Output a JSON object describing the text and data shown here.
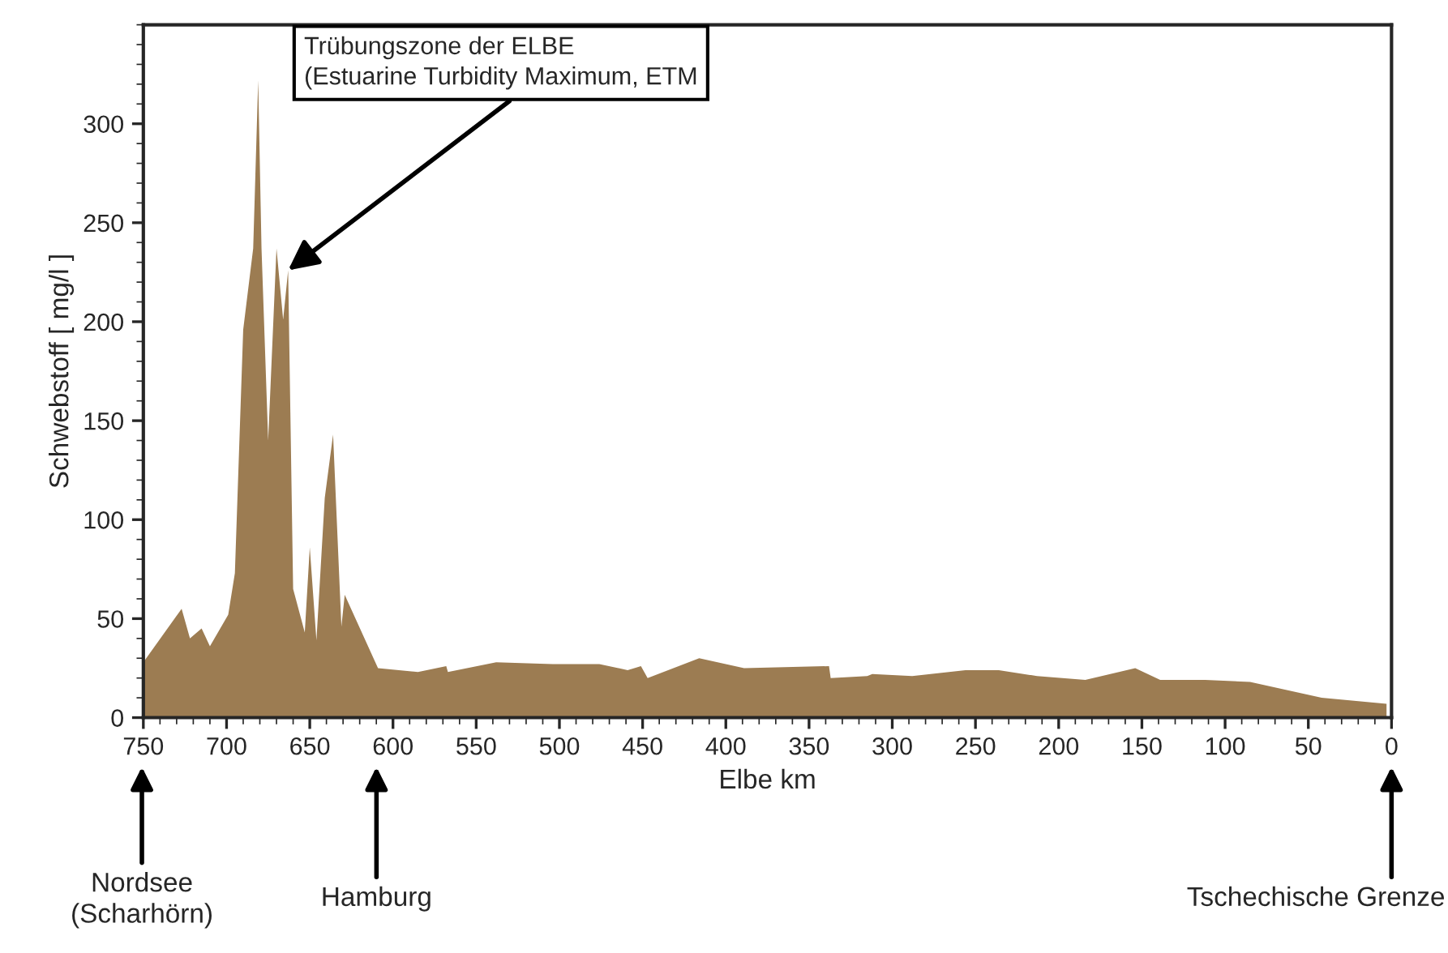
{
  "chart_data": {
    "type": "area",
    "xlabel": "Elbe km",
    "ylabel": "Schwebstoff [ mg/l ]",
    "x": [
      750,
      727,
      722,
      715,
      710,
      699,
      695,
      690,
      684,
      681,
      679,
      675,
      670,
      666,
      663,
      660,
      653,
      650,
      646,
      641,
      636,
      631,
      629,
      609,
      585,
      568,
      567,
      538,
      504,
      476,
      459,
      451,
      447,
      416,
      389,
      338,
      337,
      315,
      312,
      288,
      256,
      236,
      213,
      184,
      154,
      139,
      112,
      85,
      42,
      3
    ],
    "series": [
      {
        "color": "#9c7c52",
        "values": [
          28,
          55,
          40,
          45,
          36,
          52,
          73,
          196,
          237,
          322,
          237,
          140,
          237,
          201,
          226,
          65,
          43,
          86,
          39,
          111,
          143,
          46,
          62,
          25,
          23,
          26,
          23,
          28,
          27,
          27,
          24,
          26,
          20,
          30,
          25,
          26,
          20,
          21,
          22,
          21,
          24,
          24,
          21,
          19,
          25,
          19,
          19,
          18,
          10,
          7
        ]
      }
    ],
    "xlim": [
      750,
      0
    ],
    "xticks": [
      750,
      700,
      650,
      600,
      550,
      500,
      450,
      400,
      350,
      300,
      250,
      200,
      150,
      100,
      50,
      0
    ],
    "ylim": [
      0,
      350
    ],
    "yticks": [
      0,
      50,
      100,
      150,
      200,
      250,
      300
    ],
    "grid": false,
    "legend": false,
    "annotations": [
      {
        "text": "Trübungszone der ELBE\n(Estuarine Turbidity Maximum, ETM",
        "x": 663,
        "y": 226
      },
      "Nordsee\n(Scharhörn)",
      "Hamburg",
      "Tschechische Grenze"
    ]
  }
}
